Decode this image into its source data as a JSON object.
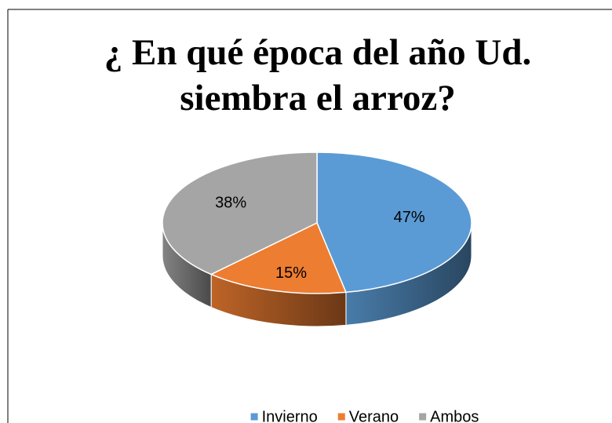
{
  "chart_data": {
    "type": "pie3d",
    "title": "¿ En qué época del año Ud. siembra el arroz?",
    "categories": [
      "Invierno",
      "Verano",
      "Ambos"
    ],
    "values": [
      47,
      15,
      38
    ],
    "value_labels": [
      "47%",
      "15%",
      "38%"
    ],
    "colors": [
      "#5b9bd5",
      "#ed7d31",
      "#a5a5a5"
    ],
    "legend": "bottom"
  }
}
